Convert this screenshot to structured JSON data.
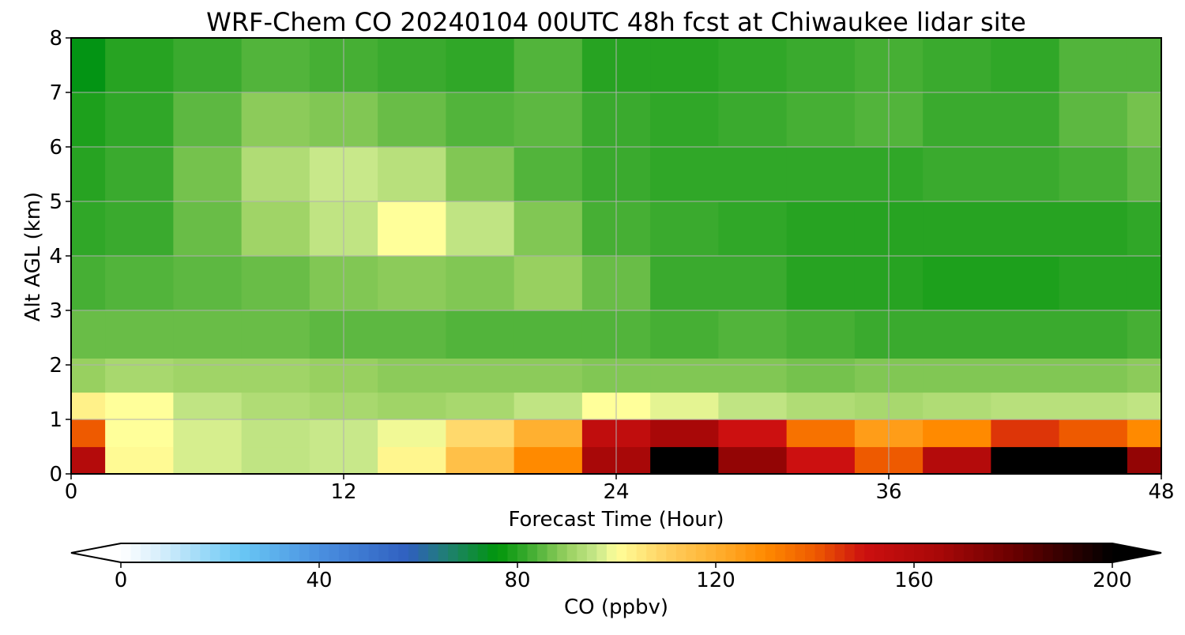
{
  "chart_data": {
    "type": "heatmap",
    "title": "WRF-Chem CO  20240104 00UTC 48h fcst at Chiwaukee lidar site",
    "xlabel": "Forecast Time (Hour)",
    "ylabel": "Alt AGL (km)",
    "xlim": [
      0,
      48
    ],
    "ylim": [
      0,
      8
    ],
    "xticks": [
      0,
      12,
      24,
      36,
      48
    ],
    "yticks": [
      0,
      1,
      2,
      3,
      4,
      5,
      6,
      7,
      8
    ],
    "grid": true,
    "x": [
      0,
      3,
      6,
      9,
      12,
      15,
      18,
      21,
      24,
      27,
      30,
      33,
      36,
      39,
      42,
      45,
      48
    ],
    "y": [
      0.25,
      0.75,
      1.25,
      1.75,
      2.5,
      3.5,
      4.5,
      5.5,
      6.5,
      7.5
    ],
    "z": [
      [
        160,
        101,
        97,
        95,
        96,
        102,
        115,
        130,
        165,
        210,
        170,
        150,
        140,
        160,
        205,
        205,
        170
      ],
      [
        140,
        100,
        97,
        95,
        96,
        99,
        108,
        120,
        155,
        165,
        150,
        135,
        125,
        130,
        145,
        140,
        130
      ],
      [
        103,
        100,
        95,
        93,
        92,
        91,
        92,
        95,
        100,
        98,
        95,
        93,
        92,
        93,
        94,
        94,
        95
      ],
      [
        90,
        92,
        91,
        91,
        90,
        89,
        89,
        89,
        88,
        88,
        88,
        87,
        88,
        88,
        88,
        88,
        89
      ],
      [
        86,
        86,
        86,
        86,
        85,
        85,
        84,
        84,
        84,
        83,
        84,
        83,
        82,
        82,
        82,
        82,
        83
      ],
      [
        83,
        84,
        85,
        86,
        88,
        89,
        88,
        90,
        86,
        82,
        82,
        80,
        80,
        79,
        79,
        80,
        80
      ],
      [
        81,
        82,
        86,
        91,
        95,
        100,
        95,
        88,
        83,
        82,
        81,
        80,
        80,
        80,
        80,
        80,
        81
      ],
      [
        80,
        82,
        87,
        93,
        96,
        94,
        88,
        84,
        82,
        81,
        81,
        81,
        81,
        82,
        82,
        83,
        85
      ],
      [
        79,
        81,
        85,
        89,
        88,
        86,
        84,
        85,
        82,
        81,
        82,
        83,
        84,
        82,
        82,
        85,
        87
      ],
      [
        75,
        80,
        82,
        84,
        83,
        82,
        81,
        84,
        80,
        80,
        81,
        82,
        83,
        82,
        81,
        84,
        84
      ]
    ],
    "colorbar": {
      "label": "CO  (ppbv)",
      "min": 0,
      "max": 200,
      "ticks": [
        0,
        40,
        80,
        120,
        160,
        200
      ],
      "extend": "both",
      "stops": [
        [
          0,
          "#ffffff"
        ],
        [
          8,
          "#d6eefb"
        ],
        [
          24,
          "#6ac8f5"
        ],
        [
          40,
          "#4a90e0"
        ],
        [
          58,
          "#2f5fbf"
        ],
        [
          66,
          "#1f8070"
        ],
        [
          76,
          "#00960a"
        ],
        [
          82,
          "#3aaa2e"
        ],
        [
          90,
          "#98d060"
        ],
        [
          96,
          "#c8e88a"
        ],
        [
          100,
          "#ffff9a"
        ],
        [
          110,
          "#ffd060"
        ],
        [
          120,
          "#ffb030"
        ],
        [
          130,
          "#ff8a00"
        ],
        [
          140,
          "#ee5a00"
        ],
        [
          150,
          "#cc1010"
        ],
        [
          165,
          "#a80808"
        ],
        [
          180,
          "#6a0000"
        ],
        [
          200,
          "#000000"
        ]
      ]
    }
  }
}
